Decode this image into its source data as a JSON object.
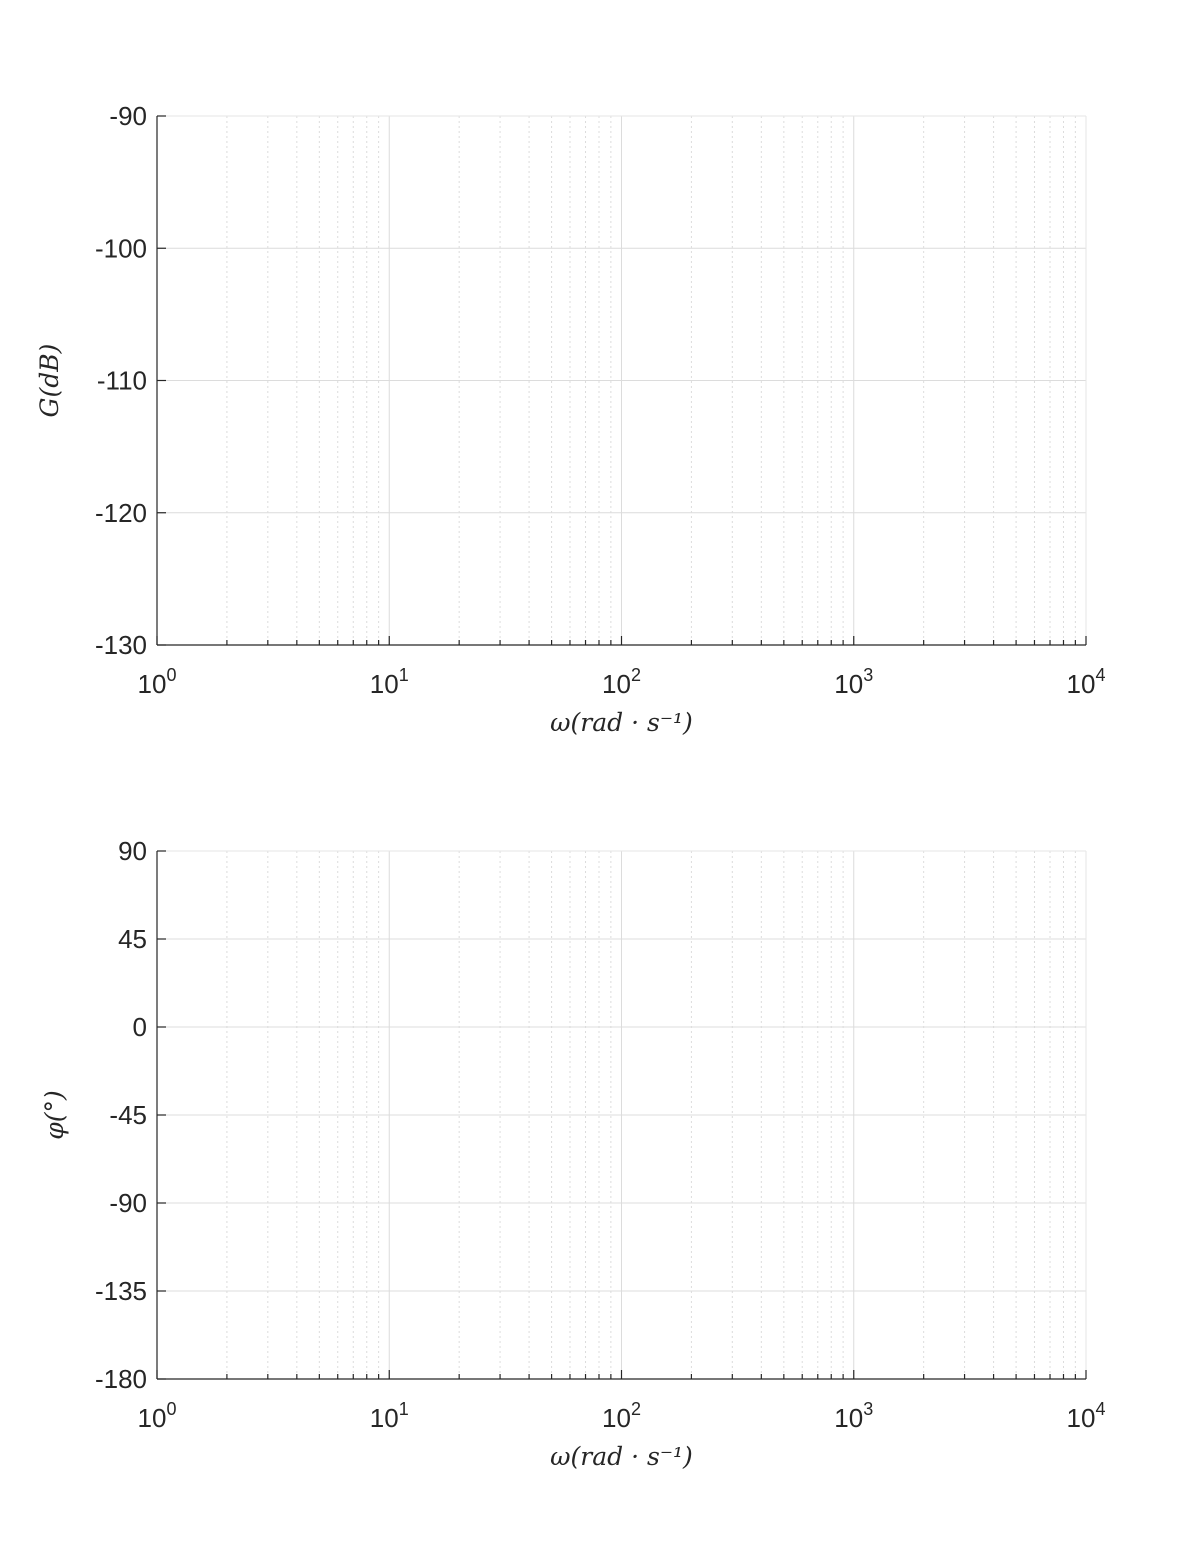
{
  "chart_data": [
    {
      "type": "line",
      "title": "",
      "xlabel": "ω(rad · s⁻¹)",
      "ylabel": "G(dB)",
      "x_scale": "log",
      "xlim": [
        1,
        10000
      ],
      "ylim": [
        -130,
        -90
      ],
      "x_ticks": [
        1,
        10,
        100,
        1000,
        10000
      ],
      "x_tick_labels": [
        {
          "base": "10",
          "exp": "0"
        },
        {
          "base": "10",
          "exp": "1"
        },
        {
          "base": "10",
          "exp": "2"
        },
        {
          "base": "10",
          "exp": "3"
        },
        {
          "base": "10",
          "exp": "4"
        }
      ],
      "y_ticks": [
        -90,
        -100,
        -110,
        -120,
        -130
      ],
      "y_tick_labels": [
        "-90",
        "-100",
        "-110",
        "-120",
        "-130"
      ],
      "grid": true,
      "minor_grid": true,
      "series": []
    },
    {
      "type": "line",
      "title": "",
      "xlabel": "ω(rad · s⁻¹)",
      "ylabel": "φ(°)",
      "x_scale": "log",
      "xlim": [
        1,
        10000
      ],
      "ylim": [
        -180,
        90
      ],
      "x_ticks": [
        1,
        10,
        100,
        1000,
        10000
      ],
      "x_tick_labels": [
        {
          "base": "10",
          "exp": "0"
        },
        {
          "base": "10",
          "exp": "1"
        },
        {
          "base": "10",
          "exp": "2"
        },
        {
          "base": "10",
          "exp": "3"
        },
        {
          "base": "10",
          "exp": "4"
        }
      ],
      "y_ticks": [
        90,
        45,
        0,
        -45,
        -90,
        -135,
        -180
      ],
      "y_tick_labels": [
        "90",
        "45",
        "0",
        "-45",
        "-90",
        "-135",
        "-180"
      ],
      "grid": true,
      "minor_grid": true,
      "series": []
    }
  ]
}
